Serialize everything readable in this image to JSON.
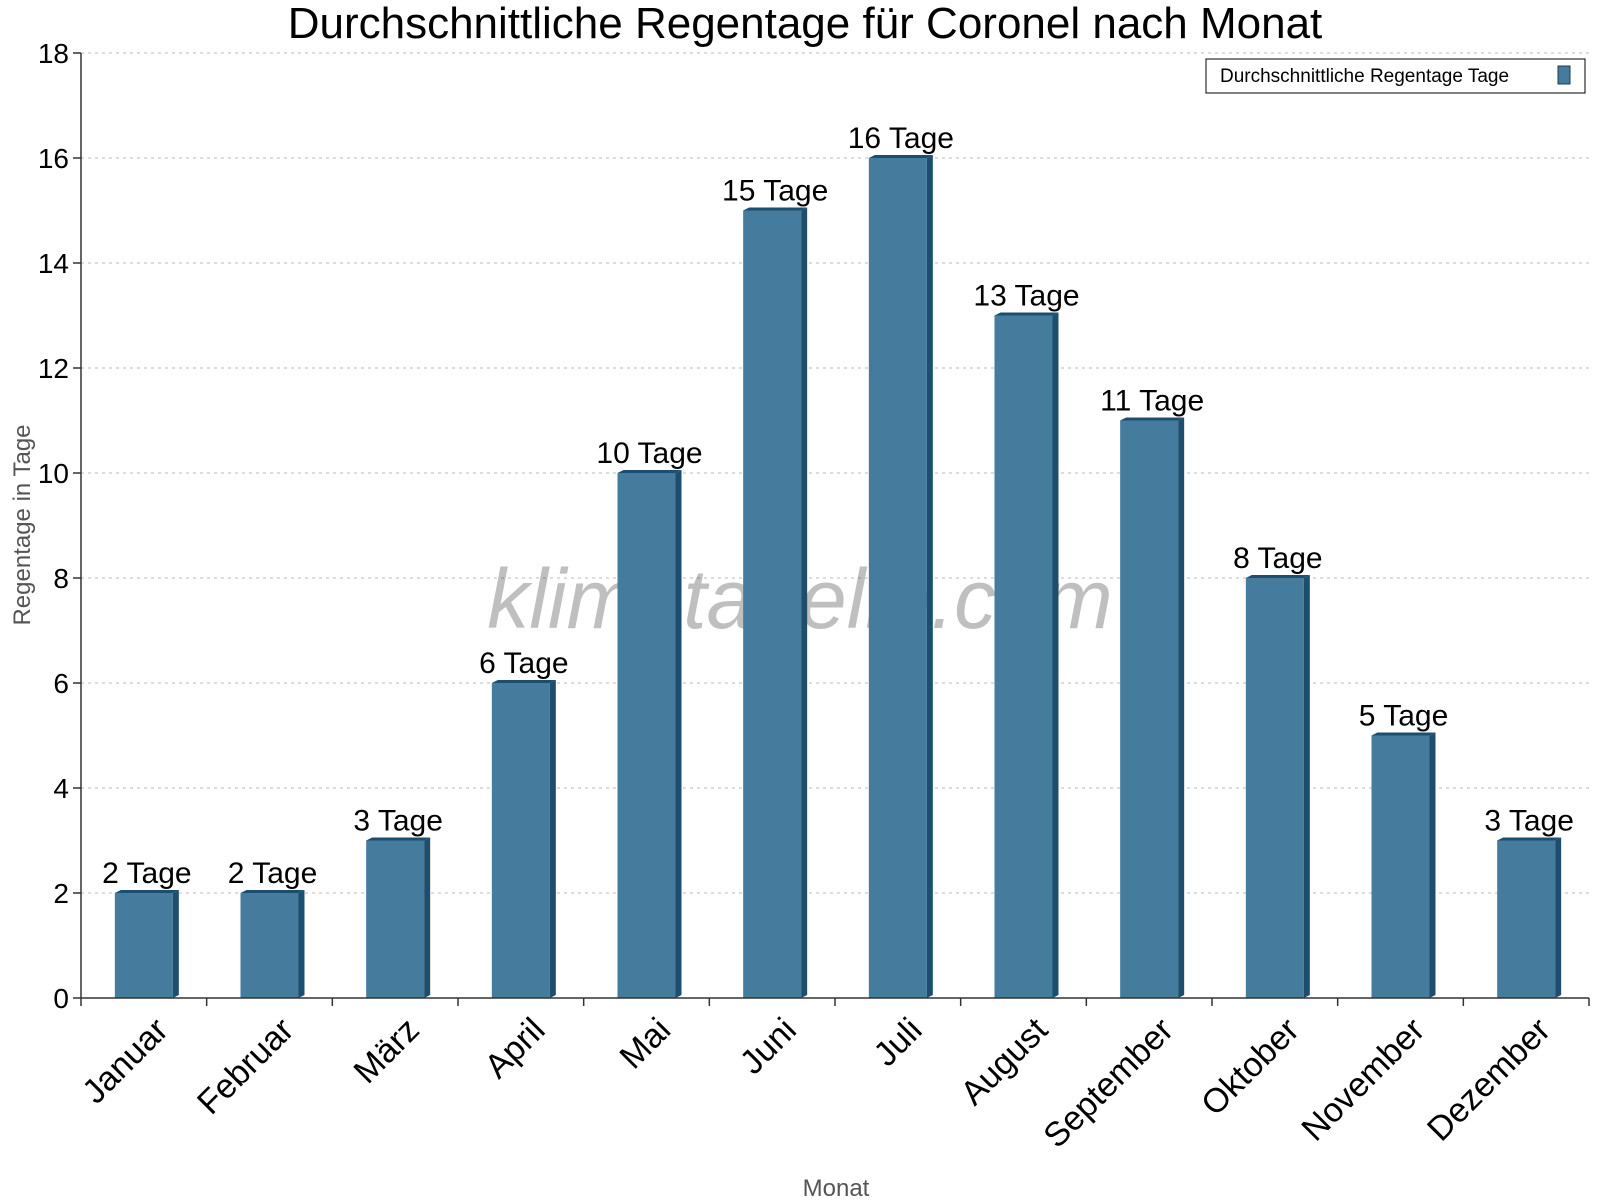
{
  "chart_data": {
    "type": "bar",
    "title": "Durchschnittliche Regentage für Coronel nach Monat",
    "xlabel": "Monat",
    "ylabel": "Regentage in Tage",
    "categories": [
      "Januar",
      "Februar",
      "März",
      "April",
      "Mai",
      "Juni",
      "Juli",
      "August",
      "September",
      "Oktober",
      "November",
      "Dezember"
    ],
    "series": [
      {
        "name": "Durchschnittliche Regentage Tage",
        "values": [
          2,
          2,
          3,
          6,
          10,
          15,
          16,
          13,
          11,
          8,
          5,
          3
        ],
        "labels": [
          "2 Tage",
          "2 Tage",
          "3 Tage",
          "6 Tage",
          "10 Tage",
          "15 Tage",
          "16 Tage",
          "13 Tage",
          "11 Tage",
          "8 Tage",
          "5 Tage",
          "3 Tage"
        ]
      }
    ],
    "ylim": [
      0,
      18
    ],
    "yticks": [
      0,
      2,
      4,
      6,
      8,
      10,
      12,
      14,
      16,
      18
    ],
    "grid": true,
    "legend_position": "top-right",
    "bar_color": "#457b9d",
    "bar_side_color": "#1d4e6e",
    "watermark": "klimatabelle.com"
  }
}
